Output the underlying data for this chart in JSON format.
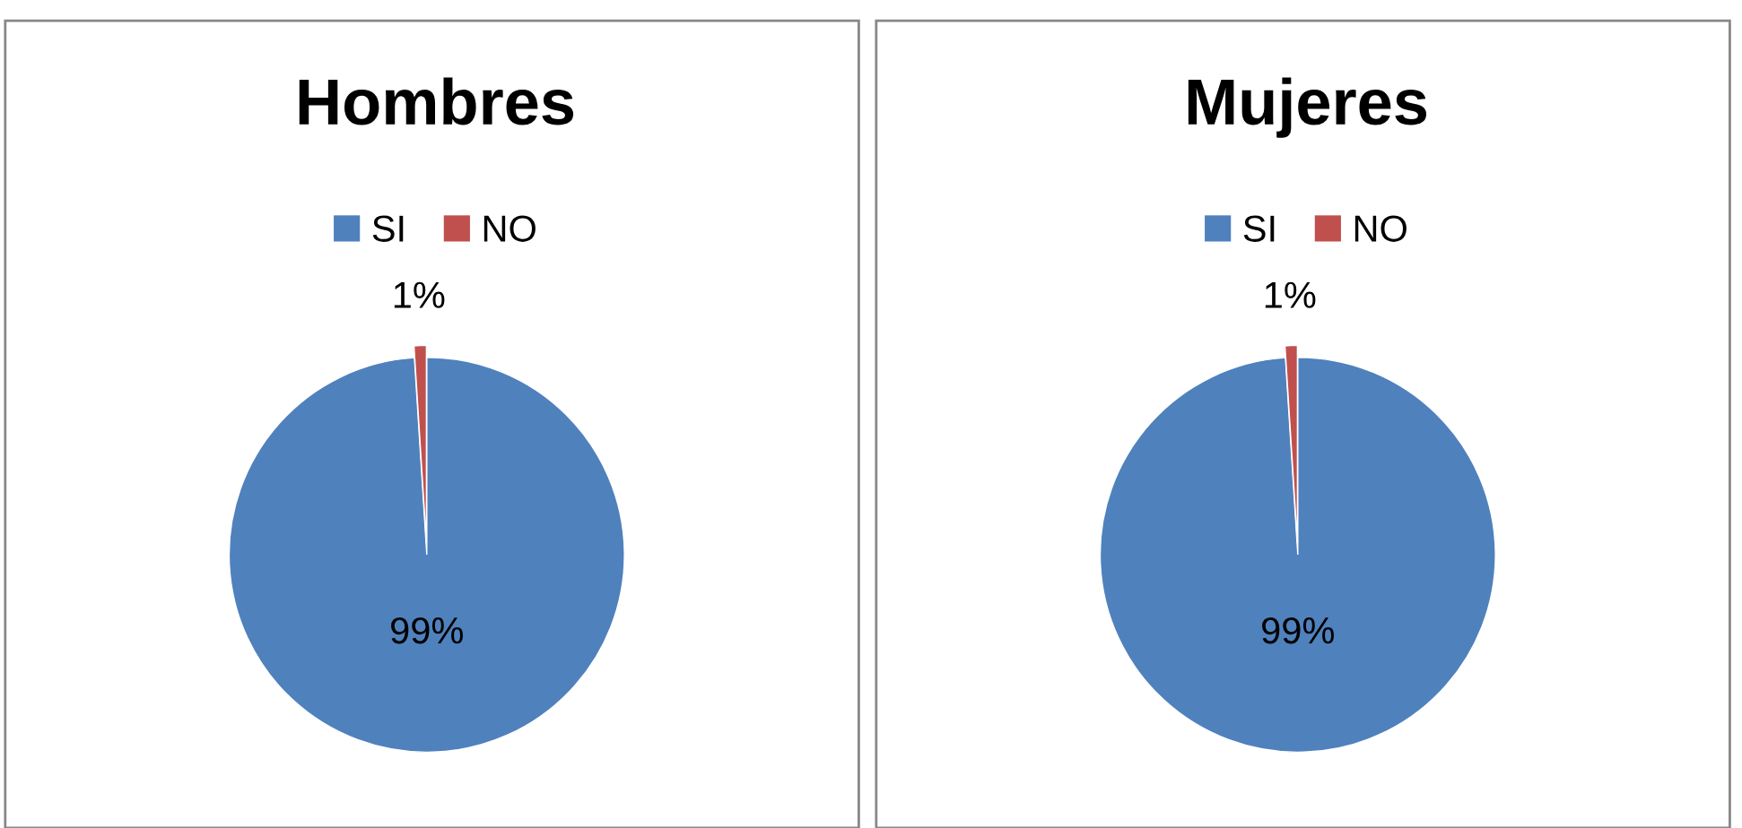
{
  "chart_data": [
    {
      "type": "pie",
      "title": "Hombres",
      "categories": [
        "SI",
        "NO"
      ],
      "values": [
        99,
        1
      ],
      "colors": [
        "#4f81bd",
        "#c0504d"
      ],
      "value_labels": [
        "99%",
        "1%"
      ],
      "legend": "top"
    },
    {
      "type": "pie",
      "title": "Mujeres",
      "categories": [
        "SI",
        "NO"
      ],
      "values": [
        99,
        1
      ],
      "colors": [
        "#4f81bd",
        "#c0504d"
      ],
      "value_labels": [
        "99%",
        "1%"
      ],
      "legend": "top"
    }
  ]
}
